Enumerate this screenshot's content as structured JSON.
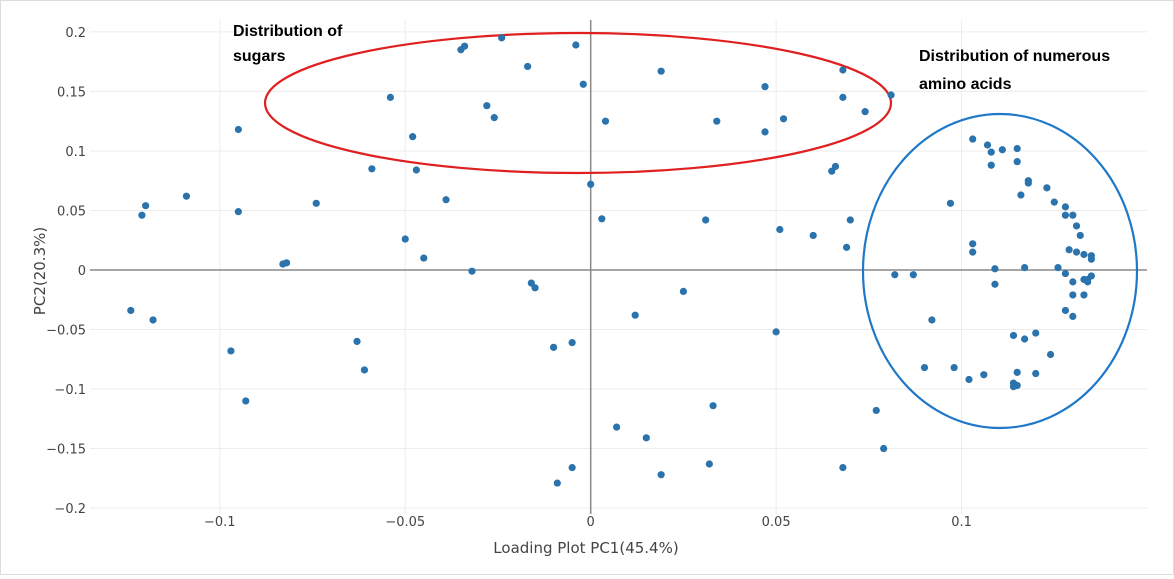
{
  "chart_data": {
    "type": "scatter",
    "title": "",
    "xlabel": "Loading Plot PC1(45.4%)",
    "ylabel": "PC2(20.3%)",
    "xlim": [
      -0.135,
      0.15
    ],
    "ylim": [
      -0.205,
      0.21
    ],
    "grid": true,
    "legend": "none",
    "x_ticks": [
      -0.1,
      -0.05,
      0,
      0.05,
      0.1
    ],
    "x_tick_labels": [
      "−0.1",
      "−0.05",
      "0",
      "0.05",
      "0.1"
    ],
    "y_ticks": [
      -0.2,
      -0.15,
      -0.1,
      -0.05,
      0,
      0.05,
      0.1,
      0.15,
      0.2
    ],
    "y_tick_labels": [
      "−0.2",
      "−0.15",
      "−0.1",
      "−0.05",
      "0",
      "0.05",
      "0.1",
      "0.15",
      "0.2"
    ],
    "series": [
      {
        "color": "#2a73ad",
        "points": [
          [
            -0.035,
            0.185
          ],
          [
            -0.034,
            0.188
          ],
          [
            -0.024,
            0.195
          ],
          [
            -0.004,
            0.189
          ],
          [
            -0.017,
            0.171
          ],
          [
            -0.002,
            0.156
          ],
          [
            0.019,
            0.167
          ],
          [
            0.047,
            0.154
          ],
          [
            0.068,
            0.168
          ],
          [
            0.081,
            0.147
          ],
          [
            0.068,
            0.145
          ],
          [
            0.074,
            0.133
          ],
          [
            -0.054,
            0.145
          ],
          [
            -0.028,
            0.138
          ],
          [
            -0.026,
            0.128
          ],
          [
            0.004,
            0.125
          ],
          [
            0.034,
            0.125
          ],
          [
            0.052,
            0.127
          ],
          [
            0.047,
            0.116
          ],
          [
            -0.048,
            0.112
          ],
          [
            -0.095,
            0.118
          ],
          [
            -0.059,
            0.085
          ],
          [
            -0.047,
            0.084
          ],
          [
            0.065,
            0.083
          ],
          [
            0.066,
            0.087
          ],
          [
            0,
            0.072
          ],
          [
            -0.109,
            0.062
          ],
          [
            -0.039,
            0.059
          ],
          [
            -0.074,
            0.056
          ],
          [
            -0.12,
            0.054
          ],
          [
            -0.095,
            0.049
          ],
          [
            -0.121,
            0.046
          ],
          [
            0.031,
            0.042
          ],
          [
            0.003,
            0.043
          ],
          [
            0.07,
            0.042
          ],
          [
            0.051,
            0.034
          ],
          [
            0.06,
            0.029
          ],
          [
            -0.05,
            0.026
          ],
          [
            0.069,
            0.019
          ],
          [
            -0.045,
            0.01
          ],
          [
            -0.083,
            0.005
          ],
          [
            -0.082,
            0.006
          ],
          [
            -0.032,
            -0.001
          ],
          [
            -0.016,
            -0.011
          ],
          [
            -0.015,
            -0.015
          ],
          [
            0.025,
            -0.018
          ],
          [
            -0.124,
            -0.034
          ],
          [
            -0.118,
            -0.042
          ],
          [
            0.012,
            -0.038
          ],
          [
            0.05,
            -0.052
          ],
          [
            -0.063,
            -0.06
          ],
          [
            -0.005,
            -0.061
          ],
          [
            -0.01,
            -0.065
          ],
          [
            -0.097,
            -0.068
          ],
          [
            -0.061,
            -0.084
          ],
          [
            -0.093,
            -0.11
          ],
          [
            0.033,
            -0.114
          ],
          [
            0.077,
            -0.118
          ],
          [
            0.007,
            -0.132
          ],
          [
            0.015,
            -0.141
          ],
          [
            0.079,
            -0.15
          ],
          [
            0.032,
            -0.163
          ],
          [
            -0.005,
            -0.166
          ],
          [
            0.068,
            -0.166
          ],
          [
            0.019,
            -0.172
          ],
          [
            -0.009,
            -0.179
          ],
          [
            0.103,
            0.11
          ],
          [
            0.107,
            0.105
          ],
          [
            0.108,
            0.099
          ],
          [
            0.111,
            0.101
          ],
          [
            0.115,
            0.102
          ],
          [
            0.115,
            0.091
          ],
          [
            0.108,
            0.088
          ],
          [
            0.118,
            0.075
          ],
          [
            0.118,
            0.073
          ],
          [
            0.123,
            0.069
          ],
          [
            0.116,
            0.063
          ],
          [
            0.097,
            0.056
          ],
          [
            0.125,
            0.057
          ],
          [
            0.128,
            0.053
          ],
          [
            0.128,
            0.046
          ],
          [
            0.13,
            0.046
          ],
          [
            0.131,
            0.037
          ],
          [
            0.132,
            0.029
          ],
          [
            0.103,
            0.022
          ],
          [
            0.103,
            0.015
          ],
          [
            0.129,
            0.017
          ],
          [
            0.131,
            0.015
          ],
          [
            0.133,
            0.013
          ],
          [
            0.135,
            0.012
          ],
          [
            0.135,
            0.009
          ],
          [
            0.117,
            0.002
          ],
          [
            0.109,
            0.001
          ],
          [
            0.126,
            0.002
          ],
          [
            0.128,
            -0.003
          ],
          [
            0.082,
            -0.004
          ],
          [
            0.087,
            -0.004
          ],
          [
            0.135,
            -0.005
          ],
          [
            0.133,
            -0.008
          ],
          [
            0.134,
            -0.008
          ],
          [
            0.134,
            -0.01
          ],
          [
            0.13,
            -0.01
          ],
          [
            0.109,
            -0.012
          ],
          [
            0.13,
            -0.021
          ],
          [
            0.133,
            -0.021
          ],
          [
            0.128,
            -0.034
          ],
          [
            0.13,
            -0.039
          ],
          [
            0.092,
            -0.042
          ],
          [
            0.12,
            -0.053
          ],
          [
            0.114,
            -0.055
          ],
          [
            0.117,
            -0.058
          ],
          [
            0.124,
            -0.071
          ],
          [
            0.09,
            -0.082
          ],
          [
            0.098,
            -0.082
          ],
          [
            0.115,
            -0.086
          ],
          [
            0.12,
            -0.087
          ],
          [
            0.106,
            -0.088
          ],
          [
            0.102,
            -0.092
          ],
          [
            0.114,
            -0.095
          ],
          [
            0.115,
            -0.097
          ],
          [
            0.114,
            -0.098
          ]
        ]
      }
    ],
    "annotations": [
      {
        "lines": [
          "Distribution of",
          "sugars"
        ],
        "ellipse_color": "#e02020"
      },
      {
        "lines": [
          "Distribution of numerous",
          "amino acids"
        ],
        "ellipse_color": "#1f78c8"
      }
    ]
  }
}
